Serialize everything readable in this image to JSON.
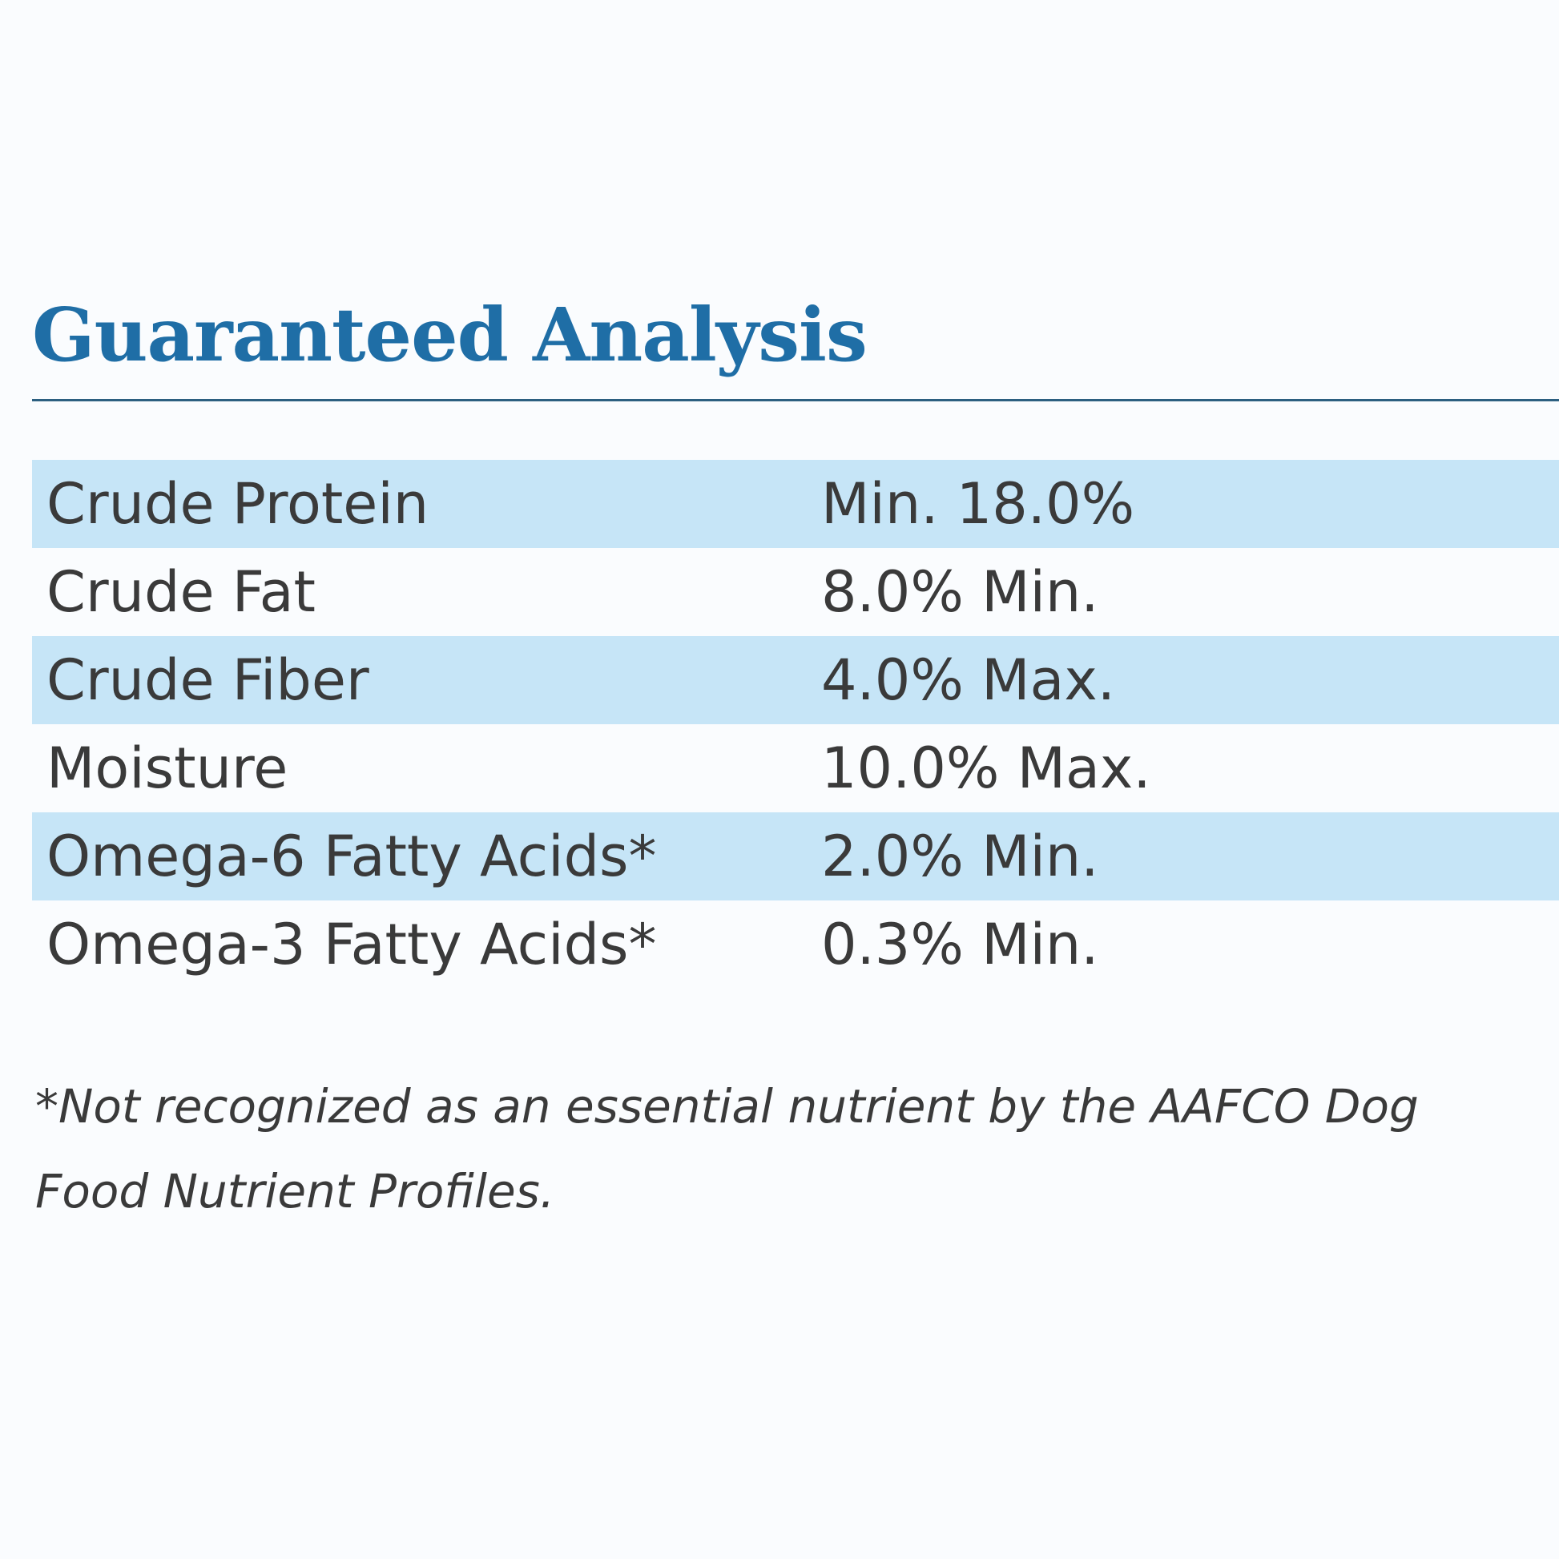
{
  "title": "Guaranteed Analysis",
  "rows": [
    {
      "name": "Crude Protein",
      "value": "Min. 18.0%"
    },
    {
      "name": "Crude Fat",
      "value": "8.0% Min."
    },
    {
      "name": "Crude Fiber",
      "value": "4.0% Max."
    },
    {
      "name": "Moisture",
      "value": "10.0% Max."
    },
    {
      "name": "Omega-6 Fatty Acids*",
      "value": "2.0% Min."
    },
    {
      "name": "Omega-3 Fatty Acids*",
      "value": "0.3% Min."
    }
  ],
  "footnote": "*Not recognized as an essential nutrient by the AAFCO Dog Food Nutrient Profiles.",
  "colors": {
    "title": "#1f6ea6",
    "rule": "#2c5f80",
    "row_shade": "#c6e5f7",
    "text": "#3a3a3a"
  }
}
